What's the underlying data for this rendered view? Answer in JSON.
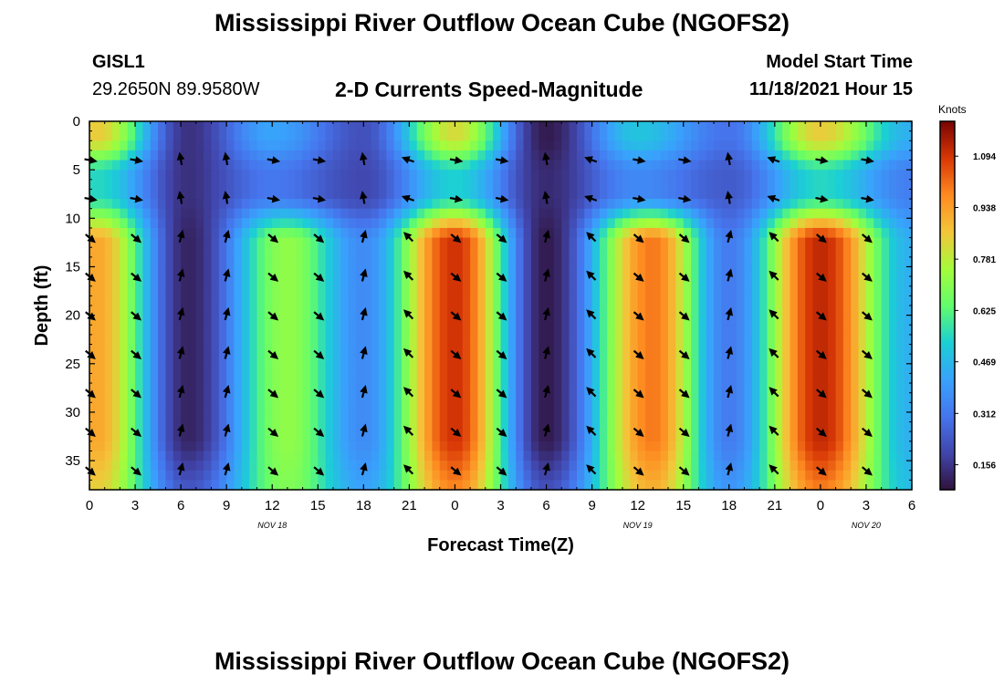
{
  "header": {
    "title": "Mississippi River Outflow Ocean Cube (NGOFS2)",
    "station_id": "GISL1",
    "coordinates": "29.2650N  89.9580W",
    "subtitle": "2-D Currents Speed-Magnitude",
    "model_start_label": "Model Start Time",
    "model_start_time": "11/18/2021 Hour 15"
  },
  "footer": {
    "title": "Mississippi River Outflow Ocean Cube (NGOFS2)"
  },
  "chart_data": {
    "type": "heatmap",
    "title": "2-D Currents Speed-Magnitude",
    "xlabel": "Forecast Time(Z)",
    "ylabel": "Depth (ft)",
    "x_range_hours": [
      0,
      54
    ],
    "xlim": [
      0,
      54
    ],
    "ylim": [
      0,
      38
    ],
    "x_tick_labels": [
      "0",
      "3",
      "6",
      "9",
      "12",
      "15",
      "18",
      "21",
      "0",
      "3",
      "6",
      "9",
      "12",
      "15",
      "18",
      "21",
      "0",
      "3",
      "6"
    ],
    "y_ticks": [
      0,
      5,
      10,
      15,
      20,
      25,
      30,
      35
    ],
    "date_labels": [
      {
        "label": "NOV 18",
        "hour": 12
      },
      {
        "label": "NOV 19",
        "hour": 36
      },
      {
        "label": "NOV 20",
        "hour": 51
      }
    ],
    "colorbar": {
      "label": "Knots",
      "range": [
        0.08,
        1.2
      ],
      "ticks": [
        0.156,
        0.312,
        0.469,
        0.625,
        0.781,
        0.938,
        1.094
      ],
      "tick_labels": [
        "0.156",
        "0.312",
        "0.469",
        "0.625",
        "0.781",
        "0.938",
        "1.094"
      ]
    },
    "lower_layer_speed_peaks": [
      {
        "hour": 0.5,
        "speed": 0.92
      },
      {
        "hour": 6.5,
        "speed": 0.12
      },
      {
        "hour": 13,
        "speed": 0.72
      },
      {
        "hour": 18,
        "speed": 0.36
      },
      {
        "hour": 24,
        "speed": 1.1
      },
      {
        "hour": 30,
        "speed": 0.1
      },
      {
        "hour": 37,
        "speed": 1.0
      },
      {
        "hour": 42,
        "speed": 0.32
      },
      {
        "hour": 48,
        "speed": 1.12
      },
      {
        "hour": 54,
        "speed": 0.45
      }
    ],
    "surface_layer_speed_peaks": [
      {
        "hour": 0.5,
        "speed": 0.85
      },
      {
        "hour": 6.5,
        "speed": 0.15
      },
      {
        "hour": 12,
        "speed": 0.42
      },
      {
        "hour": 18,
        "speed": 0.22
      },
      {
        "hour": 24,
        "speed": 0.82
      },
      {
        "hour": 30,
        "speed": 0.1
      },
      {
        "hour": 36,
        "speed": 0.5
      },
      {
        "hour": 42,
        "speed": 0.3
      },
      {
        "hour": 48,
        "speed": 0.85
      },
      {
        "hour": 54,
        "speed": 0.45
      }
    ],
    "vector_depths": [
      4,
      8,
      12,
      16,
      20,
      24,
      28,
      32,
      36
    ],
    "vector_hours": [
      0,
      3,
      6,
      9,
      12,
      15,
      18,
      21,
      24,
      27,
      30,
      33,
      36,
      39,
      42,
      45,
      48,
      51
    ]
  },
  "colors": {
    "background": "#ffffff",
    "text": "#000000"
  }
}
